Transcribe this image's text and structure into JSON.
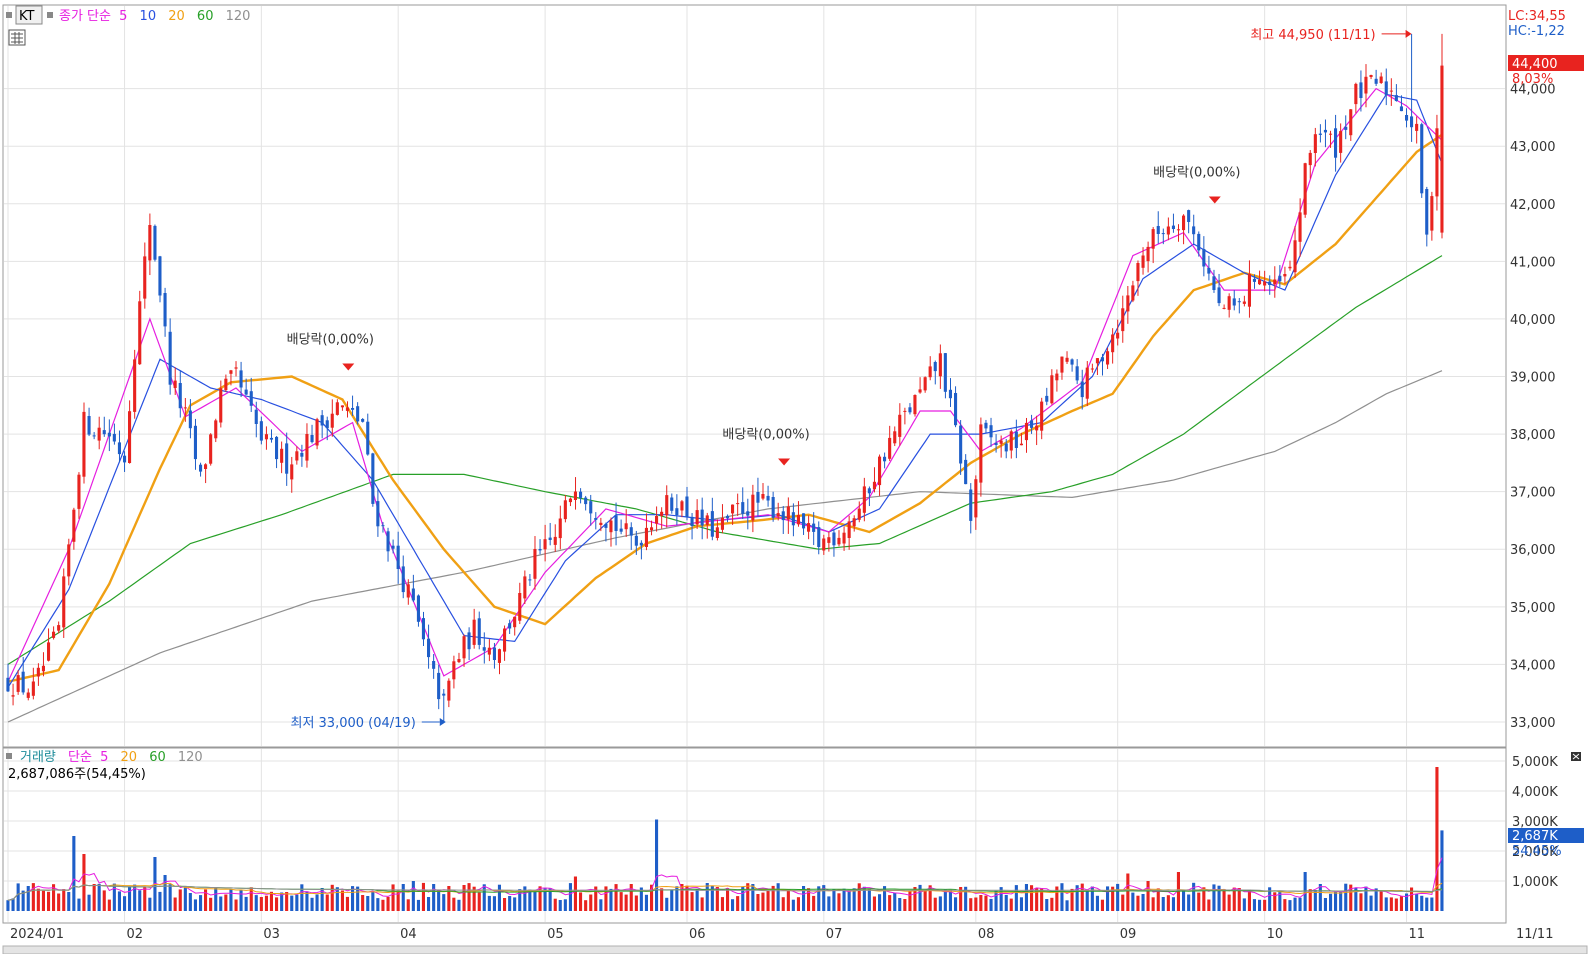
{
  "chart_data": [
    {
      "type": "candlestick",
      "symbol": "KT",
      "ma_legend": {
        "label": "종가 단순",
        "periods": [
          "5",
          "10",
          "20",
          "60",
          "120"
        ]
      },
      "ylim": [
        32600,
        45400
      ],
      "y_ticks": [
        "33,000",
        "34,000",
        "35,000",
        "36,000",
        "37,000",
        "38,000",
        "39,000",
        "40,000",
        "41,000",
        "42,000",
        "43,000",
        "44,000"
      ],
      "y_tick_values": [
        33000,
        34000,
        35000,
        36000,
        37000,
        38000,
        39000,
        40000,
        41000,
        42000,
        43000,
        44000
      ],
      "x_labels": [
        "2024/01",
        "02",
        "03",
        "04",
        "05",
        "06",
        "07",
        "08",
        "09",
        "10",
        "11"
      ],
      "x_label_day_index": [
        0,
        23,
        50,
        77,
        106,
        134,
        161,
        191,
        219,
        248,
        276
      ],
      "right_axis_label": "11/11",
      "lc": "LC:34,55",
      "hc": "HC:-1,22",
      "current_price": "44,400",
      "current_change": "8,03%",
      "high_label": "최고 44,950 (11/11)",
      "low_label": "최저 33,000 (04/19)",
      "dividend_labels": [
        "배당락(0,00%)",
        "배당락(0,00%)",
        "배당락(0,00%)"
      ],
      "dividend_day_index": [
        64,
        150,
        235
      ],
      "highs_lows": {
        "high_day_index": 277,
        "high_value": 44950,
        "low_day_index": 86,
        "low_value": 33000
      },
      "colors": {
        "up": "#e8231f",
        "down": "#1e5ec8",
        "ma5": "#e61ee0",
        "ma10": "#2850e0",
        "ma20": "#f0a014",
        "ma60": "#28a028",
        "ma120": "#909090"
      },
      "anchors": [
        [
          0,
          33700
        ],
        [
          5,
          33550
        ],
        [
          10,
          34600
        ],
        [
          15,
          38200
        ],
        [
          20,
          38000
        ],
        [
          23,
          37600
        ],
        [
          25,
          39500
        ],
        [
          28,
          41700
        ],
        [
          30,
          40500
        ],
        [
          32,
          39000
        ],
        [
          35,
          38300
        ],
        [
          38,
          37200
        ],
        [
          42,
          38700
        ],
        [
          45,
          39000
        ],
        [
          50,
          37900
        ],
        [
          55,
          37500
        ],
        [
          60,
          38000
        ],
        [
          65,
          38500
        ],
        [
          70,
          38200
        ],
        [
          72,
          36800
        ],
        [
          76,
          35900
        ],
        [
          80,
          35000
        ],
        [
          83,
          34000
        ],
        [
          86,
          33300
        ],
        [
          88,
          34000
        ],
        [
          92,
          34600
        ],
        [
          96,
          34200
        ],
        [
          100,
          34900
        ],
        [
          104,
          35800
        ],
        [
          108,
          36200
        ],
        [
          112,
          37200
        ],
        [
          115,
          36800
        ],
        [
          120,
          36400
        ],
        [
          124,
          36100
        ],
        [
          128,
          36700
        ],
        [
          132,
          36800
        ],
        [
          136,
          36500
        ],
        [
          140,
          36300
        ],
        [
          144,
          36700
        ],
        [
          148,
          36800
        ],
        [
          152,
          36700
        ],
        [
          156,
          36400
        ],
        [
          160,
          36100
        ],
        [
          164,
          36300
        ],
        [
          168,
          36700
        ],
        [
          172,
          37500
        ],
        [
          176,
          38200
        ],
        [
          180,
          38700
        ],
        [
          184,
          39300
        ],
        [
          188,
          37600
        ],
        [
          190,
          36500
        ],
        [
          192,
          38000
        ],
        [
          196,
          37800
        ],
        [
          200,
          37900
        ],
        [
          204,
          38400
        ],
        [
          208,
          39300
        ],
        [
          212,
          38800
        ],
        [
          216,
          39400
        ],
        [
          220,
          40100
        ],
        [
          224,
          41200
        ],
        [
          228,
          41600
        ],
        [
          232,
          41800
        ],
        [
          235,
          41300
        ],
        [
          239,
          40200
        ],
        [
          243,
          40200
        ],
        [
          246,
          40800
        ],
        [
          250,
          40500
        ],
        [
          253,
          40800
        ],
        [
          256,
          42500
        ],
        [
          258,
          43300
        ],
        [
          262,
          43000
        ],
        [
          266,
          43900
        ],
        [
          270,
          44100
        ],
        [
          274,
          43900
        ],
        [
          278,
          43200
        ],
        [
          280,
          41300
        ],
        [
          283,
          44400
        ]
      ],
      "ma_anchors": {
        "ma5": [
          [
            0,
            33700
          ],
          [
            12,
            36000
          ],
          [
            28,
            40000
          ],
          [
            35,
            38300
          ],
          [
            45,
            38800
          ],
          [
            58,
            37700
          ],
          [
            68,
            38200
          ],
          [
            74,
            36400
          ],
          [
            86,
            33800
          ],
          [
            96,
            34300
          ],
          [
            106,
            35600
          ],
          [
            118,
            36700
          ],
          [
            130,
            36400
          ],
          [
            140,
            36500
          ],
          [
            150,
            36600
          ],
          [
            162,
            36300
          ],
          [
            170,
            36900
          ],
          [
            180,
            38400
          ],
          [
            186,
            38400
          ],
          [
            192,
            37700
          ],
          [
            200,
            38100
          ],
          [
            212,
            38900
          ],
          [
            222,
            41100
          ],
          [
            232,
            41500
          ],
          [
            240,
            40500
          ],
          [
            250,
            40500
          ],
          [
            258,
            42700
          ],
          [
            270,
            44000
          ],
          [
            276,
            43700
          ],
          [
            283,
            43100
          ]
        ],
        "ma10": [
          [
            0,
            33600
          ],
          [
            12,
            35300
          ],
          [
            30,
            39300
          ],
          [
            40,
            38800
          ],
          [
            50,
            38600
          ],
          [
            62,
            38200
          ],
          [
            72,
            37200
          ],
          [
            90,
            34500
          ],
          [
            100,
            34400
          ],
          [
            110,
            35800
          ],
          [
            120,
            36600
          ],
          [
            130,
            36600
          ],
          [
            140,
            36500
          ],
          [
            152,
            36600
          ],
          [
            162,
            36300
          ],
          [
            172,
            36700
          ],
          [
            182,
            38000
          ],
          [
            192,
            38000
          ],
          [
            204,
            38200
          ],
          [
            214,
            39000
          ],
          [
            224,
            40700
          ],
          [
            234,
            41300
          ],
          [
            244,
            40800
          ],
          [
            252,
            40500
          ],
          [
            262,
            42500
          ],
          [
            272,
            43900
          ],
          [
            278,
            43800
          ],
          [
            283,
            42700
          ]
        ],
        "ma20": [
          [
            0,
            33700
          ],
          [
            10,
            33900
          ],
          [
            20,
            35400
          ],
          [
            30,
            37400
          ],
          [
            36,
            38500
          ],
          [
            44,
            38900
          ],
          [
            56,
            39000
          ],
          [
            66,
            38600
          ],
          [
            76,
            37200
          ],
          [
            86,
            36000
          ],
          [
            96,
            35000
          ],
          [
            106,
            34700
          ],
          [
            116,
            35500
          ],
          [
            126,
            36100
          ],
          [
            136,
            36400
          ],
          [
            148,
            36500
          ],
          [
            158,
            36600
          ],
          [
            170,
            36300
          ],
          [
            180,
            36800
          ],
          [
            190,
            37500
          ],
          [
            200,
            38000
          ],
          [
            210,
            38400
          ],
          [
            218,
            38700
          ],
          [
            226,
            39700
          ],
          [
            234,
            40500
          ],
          [
            244,
            40800
          ],
          [
            252,
            40600
          ],
          [
            262,
            41300
          ],
          [
            272,
            42300
          ],
          [
            278,
            42900
          ],
          [
            283,
            43200
          ]
        ],
        "ma60": [
          [
            0,
            34000
          ],
          [
            20,
            35100
          ],
          [
            36,
            36100
          ],
          [
            54,
            36600
          ],
          [
            76,
            37300
          ],
          [
            90,
            37300
          ],
          [
            106,
            37000
          ],
          [
            124,
            36700
          ],
          [
            140,
            36300
          ],
          [
            160,
            36000
          ],
          [
            172,
            36100
          ],
          [
            190,
            36800
          ],
          [
            206,
            37000
          ],
          [
            218,
            37300
          ],
          [
            232,
            38000
          ],
          [
            252,
            39300
          ],
          [
            266,
            40200
          ],
          [
            283,
            41100
          ]
        ],
        "ma120": [
          [
            0,
            33000
          ],
          [
            30,
            34200
          ],
          [
            60,
            35100
          ],
          [
            90,
            35600
          ],
          [
            120,
            36200
          ],
          [
            150,
            36700
          ],
          [
            180,
            37000
          ],
          [
            210,
            36900
          ],
          [
            230,
            37200
          ],
          [
            250,
            37700
          ],
          [
            262,
            38200
          ],
          [
            272,
            38700
          ],
          [
            283,
            39100
          ]
        ]
      }
    },
    {
      "type": "bar",
      "title": "거래량",
      "ma_legend": {
        "label": "단순",
        "periods": [
          "5",
          "20",
          "60",
          "120"
        ]
      },
      "current_volume": "2,687,086주(54,45%)",
      "current_volume_tag": "2,687K",
      "current_volume_pct": "54,45%",
      "y_ticks": [
        "1,000K",
        "2,000K",
        "3,000K",
        "4,000K",
        "5,000K"
      ],
      "y_tick_values": [
        1000,
        2000,
        3000,
        4000,
        5000
      ],
      "ylim": [
        0,
        5300
      ],
      "baseline_k": 650,
      "spikes": [
        [
          13,
          2500
        ],
        [
          15,
          1900
        ],
        [
          29,
          1800
        ],
        [
          31,
          1200
        ],
        [
          80,
          1000
        ],
        [
          112,
          1150
        ],
        [
          128,
          3050
        ],
        [
          133,
          900
        ],
        [
          140,
          800
        ],
        [
          221,
          1250
        ],
        [
          225,
          1000
        ],
        [
          231,
          1300
        ],
        [
          256,
          1300
        ],
        [
          282,
          4800
        ],
        [
          283,
          2687
        ]
      ]
    }
  ]
}
